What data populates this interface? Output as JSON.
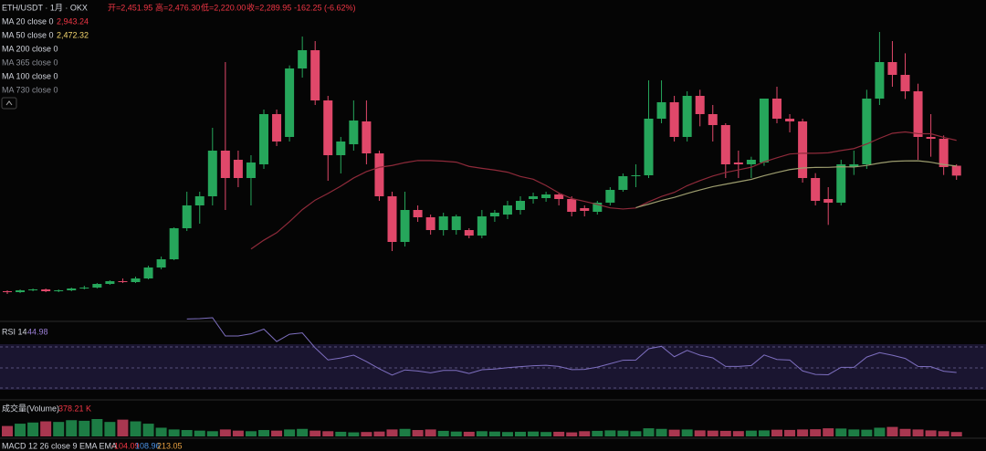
{
  "header": {
    "symbol": "ETH/USDT · 1月 · OKX",
    "open": "开=2,451.95",
    "high": "高=2,476.30",
    "low": "低=2,220.00",
    "close": "收=2,289.95",
    "change": "-162.25 (-6.62%)",
    "indicators": [
      {
        "label": "MA 20 close 0",
        "value": "2,943.24"
      },
      {
        "label": "MA 50 close 0",
        "value": "2,472.32"
      },
      {
        "label": "MA 200 close 0"
      },
      {
        "label": "MA 365 close 0"
      },
      {
        "label": "MA 100 close 0"
      },
      {
        "label": "MA 730 close 0"
      }
    ],
    "rsi": {
      "label": "RSI 14",
      "value": "44.98"
    },
    "volume": {
      "label": "成交量(Volume)",
      "value": "378.21 K"
    },
    "macd": {
      "label": "MACD 12 26 close 9 EMA EMA",
      "values": [
        "-104.09",
        "108.96",
        "213.05"
      ]
    }
  },
  "chart_data": {
    "type": "candlestick",
    "ylim": [
      0,
      5175
    ],
    "volume_ylim": [
      0,
      3000
    ],
    "rsi_ylim": [
      0,
      100
    ],
    "up_color": "#26a65b",
    "down_color": "#e0486a",
    "ma20_color": "#8e2a3a",
    "ma50_color": "#9c9c6e",
    "open": [
      390,
      375,
      405,
      420,
      390,
      405,
      435,
      450,
      510,
      555,
      540,
      600,
      780,
      915,
      1425,
      1800,
      1950,
      2700,
      2550,
      2250,
      2475,
      3300,
      2925,
      4050,
      4350,
      3525,
      2625,
      2805,
      3180,
      2655,
      1950,
      1200,
      1725,
      1605,
      1395,
      1395,
      1395,
      1305,
      1620,
      1650,
      1725,
      1905,
      1920,
      1980,
      1905,
      1755,
      1695,
      1845,
      2055,
      2280,
      2295,
      3225,
      3495,
      2925,
      3600,
      3300,
      3120,
      2505,
      2475,
      2505,
      3555,
      3225,
      3180,
      2250,
      1905,
      1845,
      2430,
      2475,
      3555,
      4155,
      3945,
      3675,
      2925,
      2895,
      2451.95
    ],
    "high": [
      405,
      420,
      435,
      435,
      420,
      450,
      480,
      525,
      570,
      600,
      630,
      810,
      960,
      1440,
      2025,
      2025,
      3075,
      4155,
      2700,
      2625,
      3375,
      3375,
      4100,
      4575,
      4500,
      3600,
      2925,
      3525,
      3525,
      2700,
      2025,
      2025,
      1800,
      1650,
      1680,
      1650,
      1425,
      1725,
      1725,
      1875,
      1950,
      2010,
      2025,
      2010,
      1950,
      1800,
      1875,
      2100,
      2325,
      2475,
      3855,
      3855,
      3600,
      3675,
      3700,
      3450,
      3150,
      2700,
      2600,
      3555,
      3750,
      3300,
      3225,
      2330,
      2100,
      2550,
      2700,
      3700,
      4650,
      4500,
      4300,
      3800,
      3300,
      2950,
      2476.3
    ],
    "low": [
      345,
      360,
      390,
      375,
      375,
      390,
      420,
      435,
      495,
      525,
      525,
      585,
      750,
      900,
      1380,
      1500,
      1800,
      1725,
      2100,
      1800,
      2400,
      2775,
      2850,
      3900,
      3450,
      2205,
      2325,
      2700,
      2475,
      1875,
      1050,
      1125,
      1530,
      1320,
      1305,
      1320,
      1260,
      1260,
      1530,
      1575,
      1650,
      1830,
      1860,
      1800,
      1620,
      1620,
      1650,
      1800,
      2025,
      2100,
      2250,
      3150,
      2850,
      2850,
      3100,
      2850,
      2250,
      2250,
      2250,
      2450,
      3150,
      3000,
      2175,
      1800,
      1480,
      1800,
      2300,
      2400,
      3450,
      3750,
      3550,
      2550,
      2600,
      2300,
      2220.0
    ],
    "close": [
      375,
      405,
      420,
      390,
      405,
      435,
      450,
      510,
      555,
      540,
      600,
      780,
      915,
      1425,
      1800,
      1950,
      2700,
      2250,
      2250,
      2505,
      3300,
      2850,
      4050,
      4350,
      3525,
      2625,
      2850,
      3195,
      2655,
      1950,
      1200,
      1725,
      1605,
      1395,
      1620,
      1620,
      1305,
      1620,
      1680,
      1800,
      1875,
      1950,
      1980,
      1905,
      1695,
      1710,
      1845,
      2055,
      2280,
      2295,
      3225,
      3495,
      2925,
      3600,
      3300,
      3120,
      2475,
      2475,
      2550,
      3555,
      3225,
      3180,
      2250,
      1875,
      1845,
      2475,
      2475,
      3555,
      4155,
      3945,
      3675,
      2925,
      2895,
      2430,
      2289.95
    ],
    "volume": [
      900,
      1100,
      1200,
      1300,
      1250,
      1400,
      1350,
      1500,
      1250,
      1450,
      1300,
      1100,
      750,
      600,
      550,
      500,
      450,
      600,
      500,
      450,
      550,
      500,
      600,
      650,
      500,
      450,
      400,
      350,
      380,
      420,
      600,
      650,
      550,
      600,
      480,
      420,
      400,
      450,
      420,
      380,
      400,
      420,
      380,
      400,
      350,
      450,
      480,
      520,
      500,
      450,
      700,
      650,
      580,
      600,
      520,
      500,
      480,
      460,
      500,
      520,
      580,
      560,
      600,
      620,
      700,
      680,
      600,
      580,
      750,
      820,
      650,
      600,
      520,
      450,
      378.21
    ]
  }
}
